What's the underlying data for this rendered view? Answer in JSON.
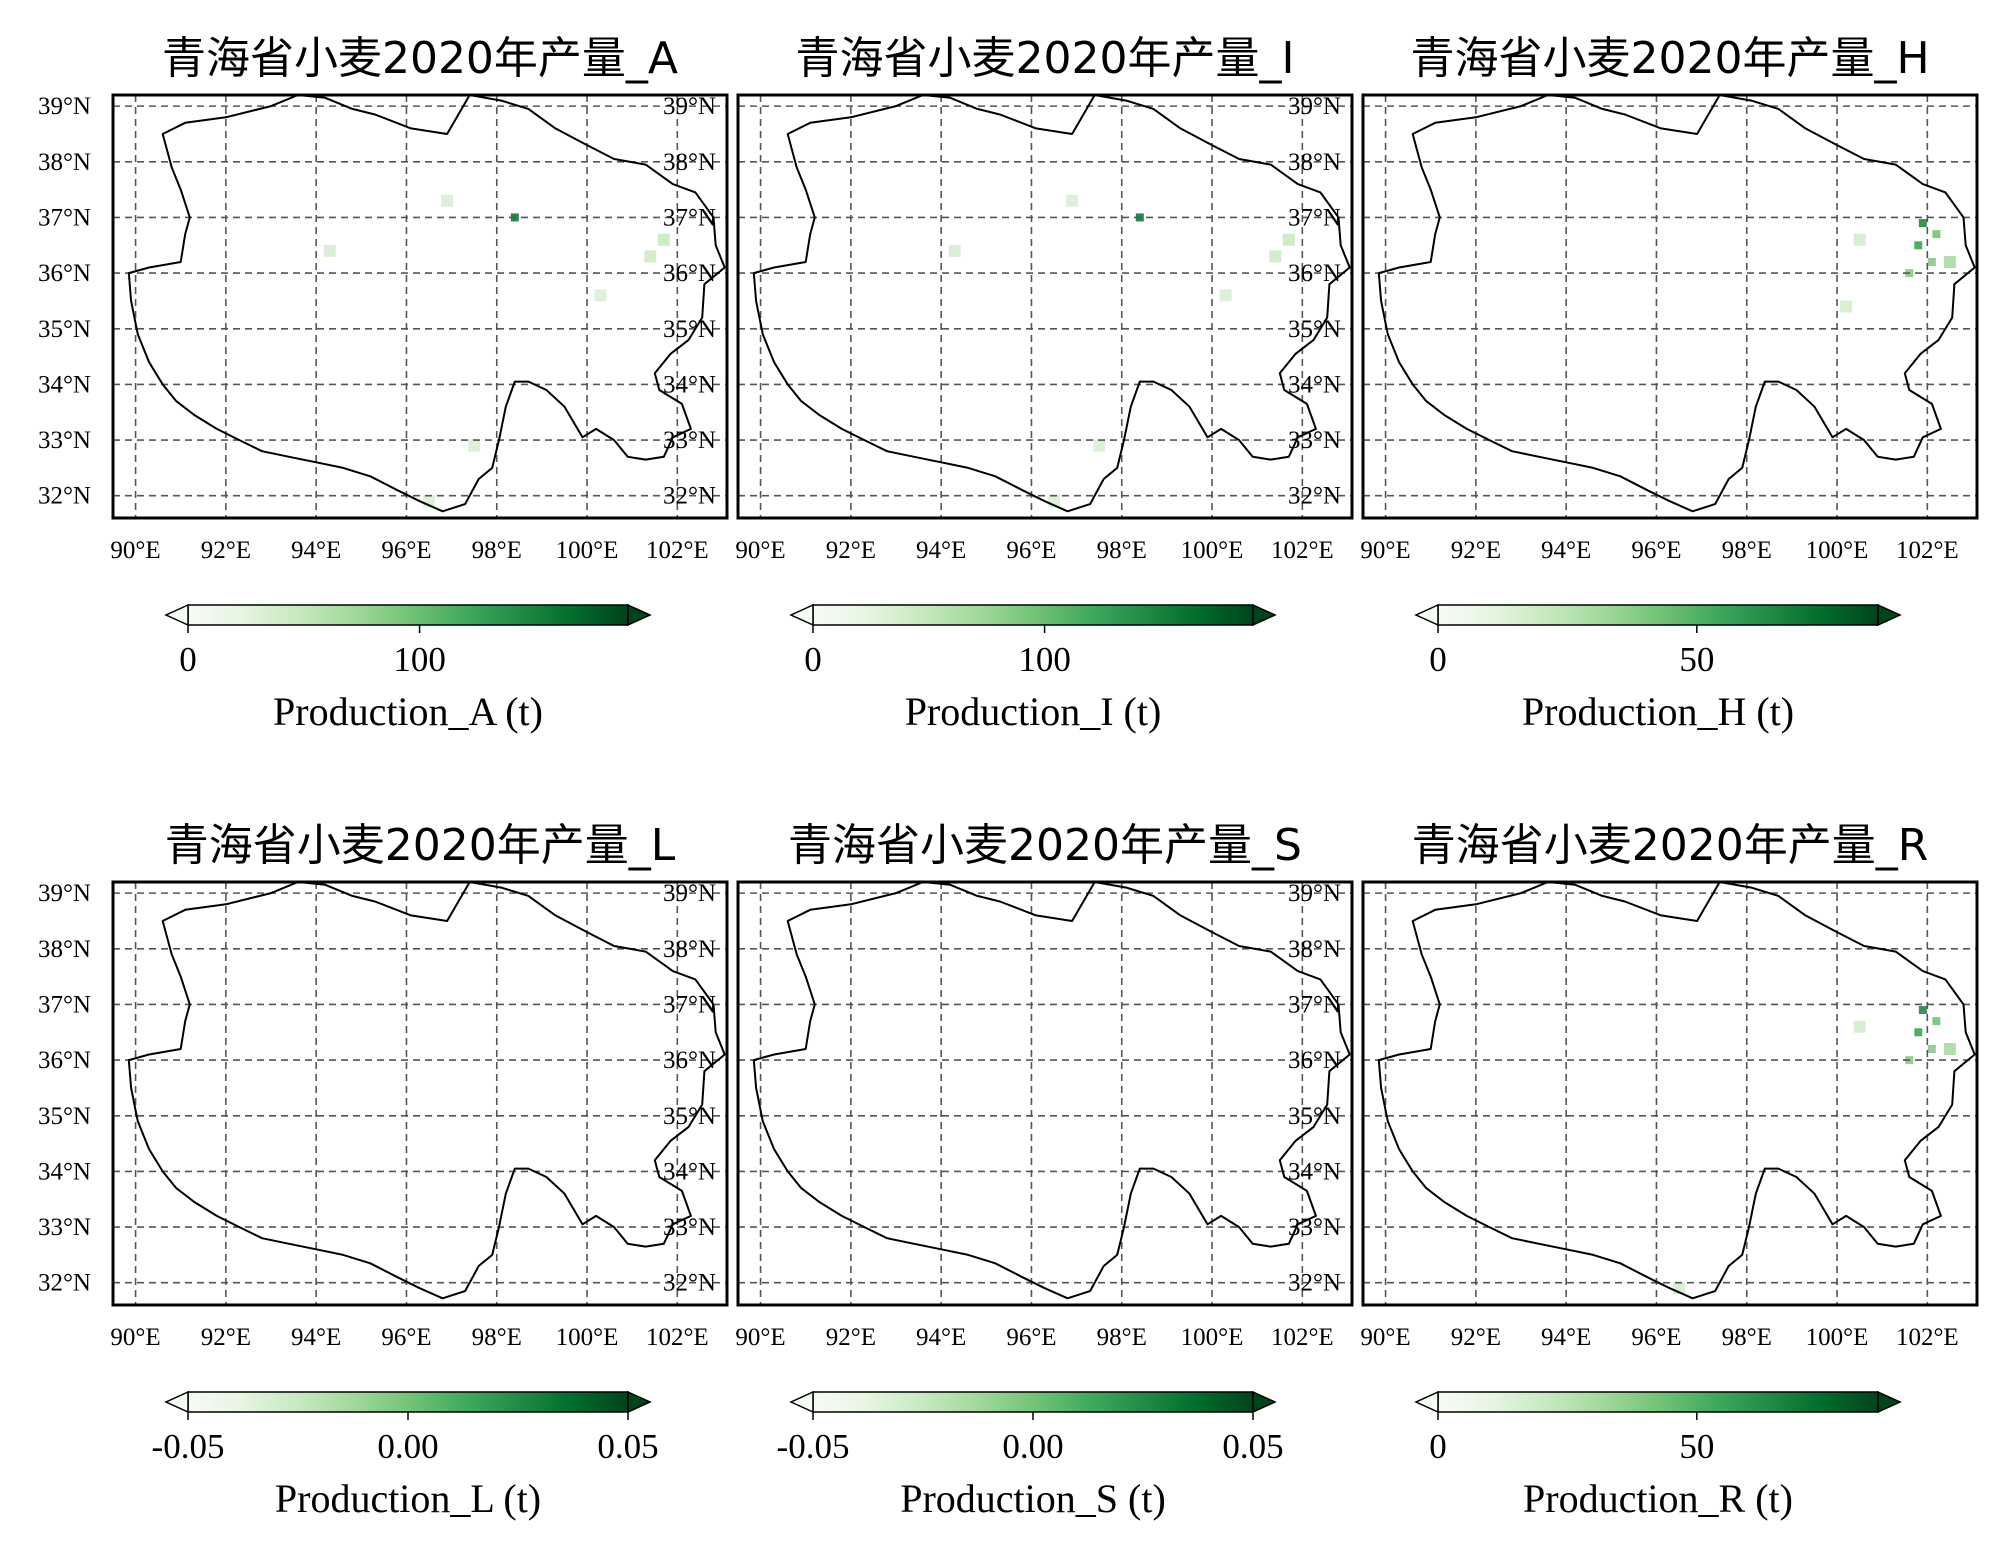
{
  "chart_data": [
    {
      "type": "heatmap",
      "title": "青海省小麦2020年产量_A",
      "colorbar_label": "Production_A (t)",
      "colorbar_ticks": [
        "0",
        "100"
      ],
      "colorbar_range": [
        0,
        190
      ],
      "colormap": "Greens",
      "x_ticks": [
        "90°E",
        "92°E",
        "94°E",
        "96°E",
        "98°E",
        "100°E",
        "102°E"
      ],
      "y_ticks": [
        "39°N",
        "38°N",
        "37°N",
        "36°N",
        "35°N",
        "34°N",
        "33°N",
        "32°N"
      ],
      "xlim": [
        89.5,
        103.1
      ],
      "ylim": [
        31.6,
        39.2
      ],
      "grid": true,
      "hotspots": [
        {
          "lon": 98.4,
          "lat": 37.0,
          "value": 150
        },
        {
          "lon": 101.7,
          "lat": 36.6,
          "value": 20
        },
        {
          "lon": 101.4,
          "lat": 36.3,
          "value": 15
        },
        {
          "lon": 94.3,
          "lat": 36.4,
          "value": 10
        },
        {
          "lon": 96.9,
          "lat": 37.3,
          "value": 6
        },
        {
          "lon": 97.5,
          "lat": 32.9,
          "value": 6
        },
        {
          "lon": 100.3,
          "lat": 35.6,
          "value": 5
        },
        {
          "lon": 96.5,
          "lat": 31.9,
          "value": 5
        }
      ]
    },
    {
      "type": "heatmap",
      "title": "青海省小麦2020年产量_I",
      "colorbar_label": "Production_I (t)",
      "colorbar_ticks": [
        "0",
        "100"
      ],
      "colorbar_range": [
        0,
        190
      ],
      "colormap": "Greens",
      "x_ticks": [
        "90°E",
        "92°E",
        "94°E",
        "96°E",
        "98°E",
        "100°E",
        "102°E"
      ],
      "y_ticks": [
        "39°N",
        "38°N",
        "37°N",
        "36°N",
        "35°N",
        "34°N",
        "33°N",
        "32°N"
      ],
      "xlim": [
        89.5,
        103.1
      ],
      "ylim": [
        31.6,
        39.2
      ],
      "grid": true,
      "hotspots": [
        {
          "lon": 98.4,
          "lat": 37.0,
          "value": 150
        },
        {
          "lon": 101.7,
          "lat": 36.6,
          "value": 20
        },
        {
          "lon": 101.4,
          "lat": 36.3,
          "value": 15
        },
        {
          "lon": 94.3,
          "lat": 36.4,
          "value": 10
        },
        {
          "lon": 96.9,
          "lat": 37.3,
          "value": 6
        },
        {
          "lon": 97.5,
          "lat": 32.9,
          "value": 6
        },
        {
          "lon": 100.3,
          "lat": 35.6,
          "value": 5
        },
        {
          "lon": 96.5,
          "lat": 31.9,
          "value": 5
        }
      ]
    },
    {
      "type": "heatmap",
      "title": "青海省小麦2020年产量_H",
      "colorbar_label": "Production_H (t)",
      "colorbar_ticks": [
        "0",
        "50"
      ],
      "colorbar_range": [
        0,
        85
      ],
      "colormap": "Greens",
      "x_ticks": [
        "90°E",
        "92°E",
        "94°E",
        "96°E",
        "98°E",
        "100°E",
        "102°E"
      ],
      "y_ticks": [
        "39°N",
        "38°N",
        "37°N",
        "36°N",
        "35°N",
        "34°N",
        "33°N",
        "32°N"
      ],
      "xlim": [
        89.5,
        103.1
      ],
      "ylim": [
        31.6,
        39.2
      ],
      "grid": true,
      "hotspots": [
        {
          "lon": 101.9,
          "lat": 36.9,
          "value": 60
        },
        {
          "lon": 101.8,
          "lat": 36.5,
          "value": 50
        },
        {
          "lon": 102.2,
          "lat": 36.7,
          "value": 35
        },
        {
          "lon": 102.1,
          "lat": 36.2,
          "value": 30
        },
        {
          "lon": 101.6,
          "lat": 36.0,
          "value": 30
        },
        {
          "lon": 102.5,
          "lat": 36.2,
          "value": 20
        },
        {
          "lon": 100.5,
          "lat": 36.6,
          "value": 6
        },
        {
          "lon": 100.2,
          "lat": 35.4,
          "value": 5
        }
      ]
    },
    {
      "type": "heatmap",
      "title": "青海省小麦2020年产量_L",
      "colorbar_label": "Production_L (t)",
      "colorbar_ticks": [
        "-0.05",
        "0.00",
        "0.05"
      ],
      "colorbar_range": [
        -0.05,
        0.05
      ],
      "colormap": "Greens",
      "x_ticks": [
        "90°E",
        "92°E",
        "94°E",
        "96°E",
        "98°E",
        "100°E",
        "102°E"
      ],
      "y_ticks": [
        "39°N",
        "38°N",
        "37°N",
        "36°N",
        "35°N",
        "34°N",
        "33°N",
        "32°N"
      ],
      "xlim": [
        89.5,
        103.1
      ],
      "ylim": [
        31.6,
        39.2
      ],
      "grid": true,
      "hotspots": []
    },
    {
      "type": "heatmap",
      "title": "青海省小麦2020年产量_S",
      "colorbar_label": "Production_S (t)",
      "colorbar_ticks": [
        "-0.05",
        "0.00",
        "0.05"
      ],
      "colorbar_range": [
        -0.05,
        0.05
      ],
      "colormap": "Greens",
      "x_ticks": [
        "90°E",
        "92°E",
        "94°E",
        "96°E",
        "98°E",
        "100°E",
        "102°E"
      ],
      "y_ticks": [
        "39°N",
        "38°N",
        "37°N",
        "36°N",
        "35°N",
        "34°N",
        "33°N",
        "32°N"
      ],
      "xlim": [
        89.5,
        103.1
      ],
      "ylim": [
        31.6,
        39.2
      ],
      "grid": true,
      "hotspots": []
    },
    {
      "type": "heatmap",
      "title": "青海省小麦2020年产量_R",
      "colorbar_label": "Production_R (t)",
      "colorbar_ticks": [
        "0",
        "50"
      ],
      "colorbar_range": [
        0,
        85
      ],
      "colormap": "Greens",
      "x_ticks": [
        "90°E",
        "92°E",
        "94°E",
        "96°E",
        "98°E",
        "100°E",
        "102°E"
      ],
      "y_ticks": [
        "39°N",
        "38°N",
        "37°N",
        "36°N",
        "35°N",
        "34°N",
        "33°N",
        "32°N"
      ],
      "xlim": [
        89.5,
        103.1
      ],
      "ylim": [
        31.6,
        39.2
      ],
      "grid": true,
      "hotspots": [
        {
          "lon": 101.9,
          "lat": 36.9,
          "value": 60
        },
        {
          "lon": 101.8,
          "lat": 36.5,
          "value": 50
        },
        {
          "lon": 102.2,
          "lat": 36.7,
          "value": 35
        },
        {
          "lon": 102.1,
          "lat": 36.2,
          "value": 30
        },
        {
          "lon": 101.6,
          "lat": 36.0,
          "value": 30
        },
        {
          "lon": 102.5,
          "lat": 36.2,
          "value": 20
        },
        {
          "lon": 100.5,
          "lat": 36.6,
          "value": 6
        },
        {
          "lon": 96.5,
          "lat": 31.9,
          "value": 5
        }
      ]
    }
  ],
  "province_outline_lonlat": [
    [
      90.6,
      38.5
    ],
    [
      91.1,
      38.7
    ],
    [
      92.0,
      38.8
    ],
    [
      93.0,
      39.0
    ],
    [
      93.6,
      39.2
    ],
    [
      94.2,
      39.15
    ],
    [
      94.8,
      38.95
    ],
    [
      95.3,
      38.85
    ],
    [
      96.1,
      38.6
    ],
    [
      96.9,
      38.5
    ],
    [
      97.4,
      39.2
    ],
    [
      98.1,
      39.1
    ],
    [
      98.7,
      38.95
    ],
    [
      99.3,
      38.6
    ],
    [
      100.0,
      38.3
    ],
    [
      100.6,
      38.05
    ],
    [
      101.3,
      37.95
    ],
    [
      101.9,
      37.6
    ],
    [
      102.4,
      37.45
    ],
    [
      102.8,
      37.0
    ],
    [
      102.85,
      36.5
    ],
    [
      103.05,
      36.1
    ],
    [
      102.6,
      35.8
    ],
    [
      102.55,
      35.2
    ],
    [
      102.25,
      34.8
    ],
    [
      101.85,
      34.55
    ],
    [
      101.5,
      34.2
    ],
    [
      101.6,
      33.9
    ],
    [
      102.1,
      33.65
    ],
    [
      102.3,
      33.2
    ],
    [
      101.9,
      33.05
    ],
    [
      101.7,
      32.7
    ],
    [
      101.3,
      32.65
    ],
    [
      100.9,
      32.7
    ],
    [
      100.6,
      33.0
    ],
    [
      100.2,
      33.2
    ],
    [
      99.9,
      33.05
    ],
    [
      99.5,
      33.6
    ],
    [
      99.1,
      33.9
    ],
    [
      98.7,
      34.05
    ],
    [
      98.4,
      34.05
    ],
    [
      98.2,
      33.6
    ],
    [
      98.05,
      33.0
    ],
    [
      97.9,
      32.5
    ],
    [
      97.6,
      32.3
    ],
    [
      97.3,
      31.85
    ],
    [
      96.8,
      31.72
    ],
    [
      96.3,
      31.9
    ],
    [
      95.8,
      32.1
    ],
    [
      95.2,
      32.35
    ],
    [
      94.6,
      32.5
    ],
    [
      94.0,
      32.6
    ],
    [
      93.4,
      32.7
    ],
    [
      92.8,
      32.8
    ],
    [
      92.3,
      33.0
    ],
    [
      91.8,
      33.2
    ],
    [
      91.3,
      33.45
    ],
    [
      90.9,
      33.7
    ],
    [
      90.6,
      34.0
    ],
    [
      90.3,
      34.4
    ],
    [
      90.05,
      34.9
    ],
    [
      89.9,
      35.5
    ],
    [
      89.85,
      36.0
    ],
    [
      90.3,
      36.1
    ],
    [
      91.0,
      36.2
    ],
    [
      91.1,
      36.7
    ],
    [
      91.2,
      37.0
    ],
    [
      91.0,
      37.5
    ],
    [
      90.8,
      37.9
    ],
    [
      90.7,
      38.2
    ],
    [
      90.6,
      38.5
    ]
  ]
}
